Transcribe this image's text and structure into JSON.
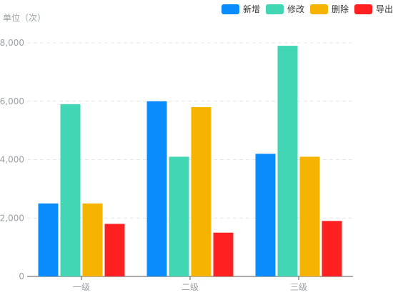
{
  "chart_data": {
    "type": "bar",
    "unit_label": "单位（次）",
    "categories": [
      "一级",
      "二级",
      "三级"
    ],
    "series": [
      {
        "name": "新增",
        "color": "#0a8cff",
        "values": [
          2500,
          6000,
          4200
        ]
      },
      {
        "name": "修改",
        "color": "#41d7b5",
        "values": [
          5900,
          4100,
          7900
        ]
      },
      {
        "name": "删除",
        "color": "#f6b400",
        "values": [
          2500,
          5800,
          4100
        ]
      },
      {
        "name": "导出",
        "color": "#ff2121",
        "values": [
          1800,
          1500,
          1900
        ]
      }
    ],
    "ylim": [
      0,
      8000
    ],
    "yticks": [
      0,
      2000,
      4000,
      6000,
      8000
    ],
    "ytick_labels": [
      "0",
      "2,000",
      "4,000",
      "6,000",
      "8,000"
    ],
    "grid": true,
    "legend_position": "top-right"
  }
}
